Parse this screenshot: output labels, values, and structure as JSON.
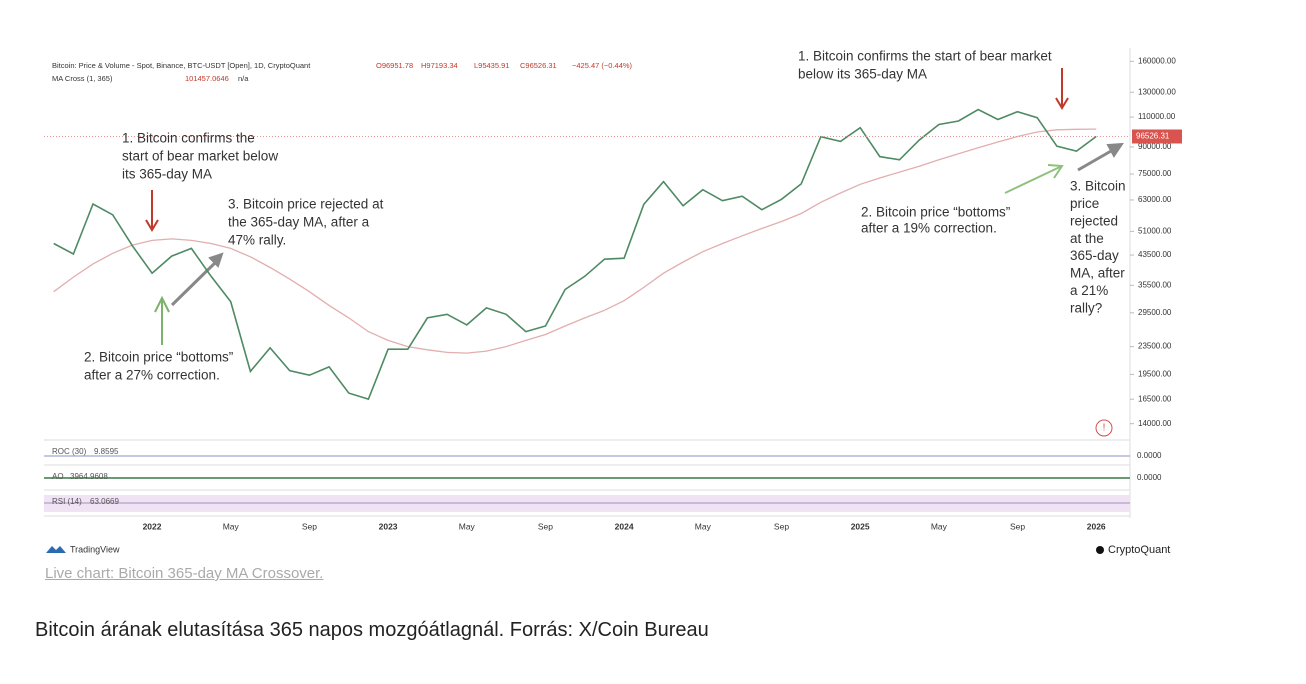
{
  "chart_data": {
    "type": "line",
    "header": {
      "symbol": "Bitcoin: Price & Volume - Spot, Binance, BTC-USDT [Open], 1D, CryptoQuant",
      "open": "O96951.78",
      "high": "H97193.34",
      "low": "L95435.91",
      "close": "C96526.31",
      "change": "−425.47 (−0.44%)",
      "ma_value": "101457.0646",
      "ma_extra": "n/a"
    },
    "categories": [
      null,
      null,
      null,
      null,
      null,
      "2022",
      null,
      null,
      null,
      "May",
      null,
      null,
      null,
      "Sep",
      null,
      null,
      null,
      "2023",
      null,
      null,
      null,
      "May",
      null,
      null,
      null,
      "Sep",
      null,
      null,
      null,
      "2024",
      null,
      null,
      null,
      "May",
      null,
      null,
      null,
      "Sep",
      null,
      null,
      null,
      "2025",
      null,
      null,
      null,
      "May",
      null,
      null,
      null,
      "Sep",
      null,
      null,
      null,
      "2026"
    ],
    "series": [
      {
        "name": "Bitcoin: Price & Volume - Spot, Binance, BTC-USDT [Open], 1D, CryptoQuant",
        "color": "#4e8a64",
        "values": [
          47000,
          43800,
          61300,
          57000,
          46300,
          38500,
          43200,
          45500,
          37700,
          31800,
          19900,
          23300,
          20000,
          19400,
          20500,
          17200,
          16500,
          23100,
          23100,
          28500,
          29200,
          27200,
          30500,
          29200,
          26000,
          27000,
          34500,
          37700,
          42300,
          42600,
          61200,
          71300,
          60600,
          67500,
          62700,
          64600,
          59000,
          63300,
          70200,
          96400,
          93400,
          102400,
          84300,
          82500,
          94200,
          104600,
          107100,
          115700,
          108200,
          114000,
          109500,
          90400,
          87500,
          96526.31
        ]
      },
      {
        "name": "MA Cross (1, 365)",
        "color": "#e2aeae",
        "values": [
          34000,
          37500,
          41000,
          44000,
          46500,
          48000,
          48500,
          48000,
          47000,
          45500,
          43000,
          40000,
          37000,
          34000,
          31000,
          28500,
          26000,
          24500,
          23500,
          23000,
          22600,
          22500,
          22800,
          23500,
          24500,
          25500,
          27000,
          28500,
          30000,
          32000,
          35000,
          38500,
          41500,
          44500,
          47000,
          49500,
          52000,
          54500,
          57500,
          62000,
          66000,
          70000,
          73000,
          76000,
          79000,
          82500,
          86000,
          89500,
          93000,
          96500,
          99500,
          101000,
          101300,
          101457.0646
        ]
      }
    ],
    "ylim": [
      12800,
      175000
    ],
    "log_scale": true,
    "yticks": [
      {
        "value": 14000,
        "label": "14000.00"
      },
      {
        "value": 16500,
        "label": "16500.00"
      },
      {
        "value": 19500,
        "label": "19500.00"
      },
      {
        "value": 23500,
        "label": "23500.00"
      },
      {
        "value": 29500,
        "label": "29500.00"
      },
      {
        "value": 35500,
        "label": "35500.00"
      },
      {
        "value": 43500,
        "label": "43500.00"
      },
      {
        "value": 51000,
        "label": "51000.00"
      },
      {
        "value": 63000,
        "label": "63000.00"
      },
      {
        "value": 75000,
        "label": "75000.00"
      },
      {
        "value": 90000,
        "label": "90000.00"
      },
      {
        "value": 110000,
        "label": "110000.00"
      },
      {
        "value": 130000,
        "label": "130000.00"
      },
      {
        "value": 160000,
        "label": "160000.00"
      }
    ],
    "last_price": {
      "value": 96526.31,
      "label": "96526.31"
    },
    "annotations": [
      {
        "lines": [
          "1. Bitcoin confirms the",
          "start of bear market below",
          "its 365-day MA"
        ]
      },
      {
        "lines": [
          "3. Bitcoin price rejected at",
          "the 365-day MA, after a",
          "47% rally."
        ]
      },
      {
        "lines": [
          "2. Bitcoin price “bottoms”",
          "after a 27% correction."
        ]
      },
      {
        "lines": [
          "1. Bitcoin confirms the start of bear market",
          "below its 365-day MA"
        ]
      },
      {
        "lines": [
          "2. Bitcoin price “bottoms”",
          "after a 19% correction."
        ]
      },
      {
        "lines": [
          "3. Bitcoin",
          "price",
          "rejected",
          "at the",
          "365-day",
          "MA, after",
          "a 21%",
          "rally?"
        ]
      }
    ],
    "indicators": [
      {
        "name": "ROC (30)",
        "value": "9.8595",
        "axis_label": "0.0000"
      },
      {
        "name": "AO",
        "value": "3964.9608",
        "axis_label": "0.0000"
      },
      {
        "name": "RSI (14)",
        "value": "63.0669"
      }
    ],
    "branding": {
      "left": "TradingView",
      "right": "CryptoQuant"
    }
  },
  "link": "Live chart: Bitcoin 365-day MA Crossover.",
  "caption": "Bitcoin árának elutasítása 365 napos mozgóátlagnál. Forrás: X/Coin Bureau"
}
